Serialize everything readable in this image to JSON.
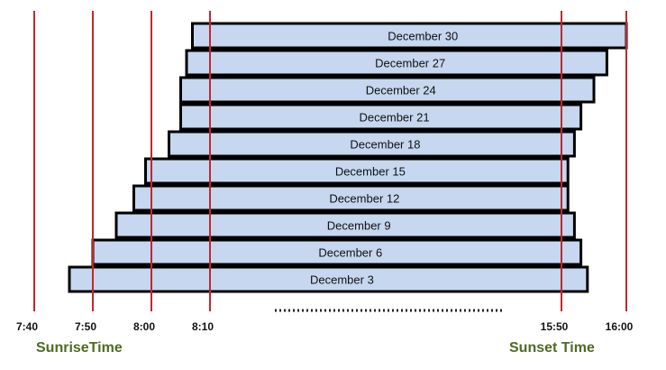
{
  "chart_data": {
    "type": "bar",
    "orientation": "horizontal-range",
    "categories": [
      "December 30",
      "December 27",
      "December 24",
      "December 21",
      "December 18",
      "December 15",
      "December 12",
      "December 9",
      "December 6",
      "December 3"
    ],
    "display_labels": [
      "December  30",
      "December 27",
      "December 24",
      "December 21",
      "December 18",
      "December 15",
      "December 12",
      "December 9",
      "December 6",
      "December 3"
    ],
    "series": [
      {
        "sunrise": [
          "8:07",
          "8:06",
          "8:05",
          "8:05",
          "8:03",
          "7:59",
          "7:57",
          "7:54",
          "7:50",
          "7:46"
        ],
        "sunset": [
          "16:00",
          "15:57",
          "15:55",
          "15:53",
          "15:52",
          "15:51",
          "15:51",
          "15:52",
          "15:53",
          "15:54"
        ]
      }
    ],
    "x_ticks_morning": [
      "7:40",
      "7:50",
      "8:00",
      "8:10"
    ],
    "x_ticks_evening": [
      "15:50",
      "16:00"
    ],
    "axis_groups": {
      "morning_label": "SunriseTime",
      "evening_label": "Sunset Time"
    },
    "axis_break": true,
    "grid": false
  },
  "colors": {
    "bar_fill": "#c6d7ef",
    "bar_stroke": "#000000",
    "ref_line": "#c0282d",
    "group_label": "#4f6b22"
  }
}
